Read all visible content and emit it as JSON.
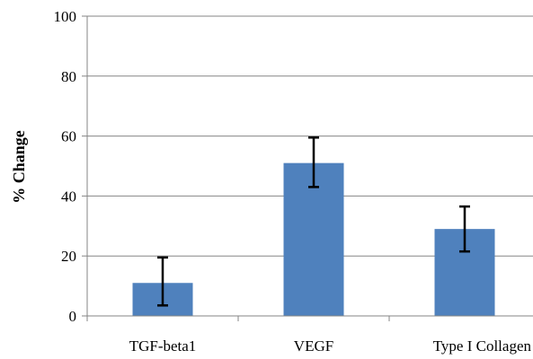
{
  "chart_data": {
    "type": "bar",
    "categories": [
      "TGF-beta1",
      "VEGF",
      "Type I Collagen"
    ],
    "values": [
      11,
      51,
      29
    ],
    "error": [
      {
        "low": 3.5,
        "high": 19.5
      },
      {
        "low": 43,
        "high": 59.5
      },
      {
        "low": 21.5,
        "high": 36.5
      }
    ],
    "title": "",
    "xlabel": "",
    "ylabel": "% Change",
    "ylim": [
      0,
      100
    ],
    "yticks": [
      0,
      20,
      40,
      60,
      80,
      100
    ],
    "grid": true,
    "legend": "none",
    "colors": {
      "bar": "#4f81bd",
      "grid": "#868686",
      "axis": "#868686",
      "error": "#000000"
    }
  }
}
